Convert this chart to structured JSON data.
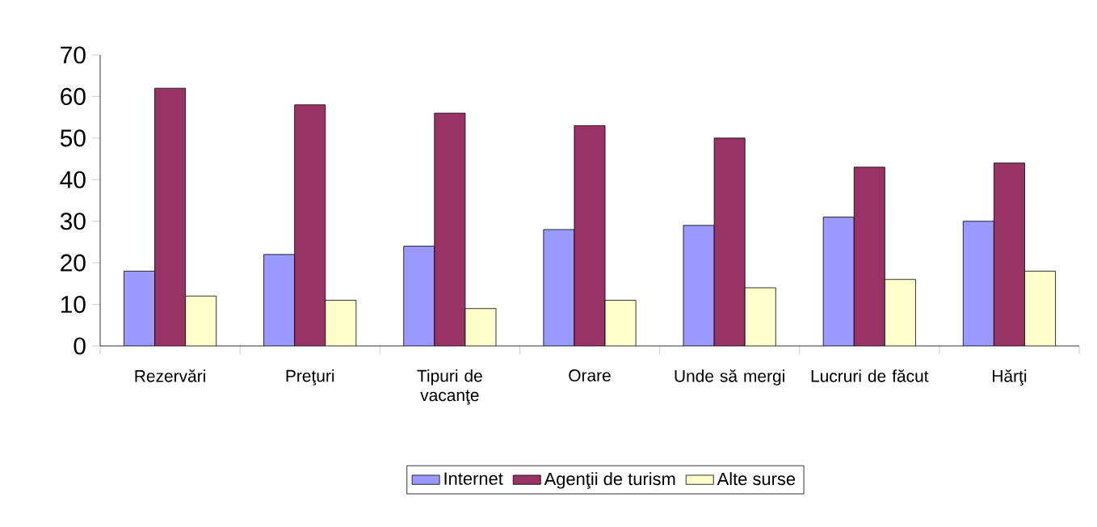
{
  "chart_data": {
    "type": "bar",
    "categories": [
      "Rezervări",
      "Preţuri",
      "Tipuri de vacanţe",
      "Orare",
      "Unde să mergi",
      "Lucruri de făcut",
      "Hărţi"
    ],
    "series": [
      {
        "name": "Internet",
        "color": "#9999ff",
        "values": [
          18,
          22,
          24,
          28,
          29,
          31,
          30
        ]
      },
      {
        "name": "Agenţii de turism",
        "color": "#993366",
        "values": [
          62,
          58,
          56,
          53,
          50,
          43,
          44
        ]
      },
      {
        "name": "Alte surse",
        "color": "#ffffcc",
        "values": [
          12,
          11,
          9,
          11,
          14,
          16,
          18
        ]
      }
    ],
    "ylim": [
      0,
      70
    ],
    "yticks": [
      0,
      10,
      20,
      30,
      40,
      50,
      60,
      70
    ],
    "grid": false,
    "legend": "bottom"
  }
}
